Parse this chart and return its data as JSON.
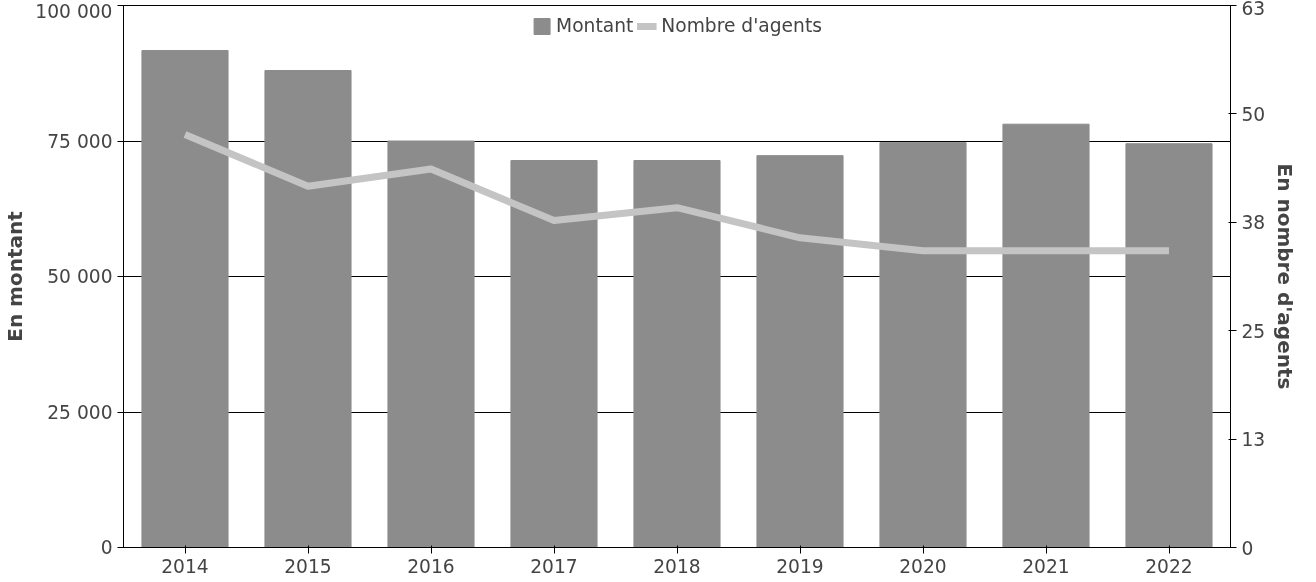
{
  "chart_data": {
    "type": "bar",
    "ylabel": "En montant",
    "y2label": "En nombre d'agents",
    "categories": [
      "2014",
      "2015",
      "2016",
      "2017",
      "2018",
      "2019",
      "2020",
      "2021",
      "2022"
    ],
    "series": [
      {
        "name": "Montant",
        "color": "#8c8c8c",
        "values": [
          91700,
          88000,
          75000,
          71400,
          71400,
          72300,
          74700,
          78100,
          74500
        ]
      },
      {
        "name": "Nombre d'agents",
        "type": "line",
        "axis": "y2",
        "color": "#c4c4c4",
        "values": [
          48,
          42,
          44,
          38,
          39.5,
          36,
          34.5,
          34.5,
          34.5
        ]
      }
    ],
    "ylim": [
      0,
      100000
    ],
    "yticks": [
      {
        "value": 0,
        "label": "0"
      },
      {
        "value": 25000,
        "label": "25 000"
      },
      {
        "value": 50000,
        "label": "50 000"
      },
      {
        "value": 75000,
        "label": "75 000"
      },
      {
        "value": 100000,
        "label": "100 000"
      }
    ],
    "y2lim": [
      0,
      63
    ],
    "y2ticks": [
      0,
      {
        "value": 12.6,
        "label": "13"
      },
      {
        "value": 25.2,
        "label": "25"
      },
      {
        "value": 37.8,
        "label": "38"
      },
      {
        "value": 50.4,
        "label": "50"
      },
      63
    ],
    "grid": "y",
    "legend": "top"
  }
}
